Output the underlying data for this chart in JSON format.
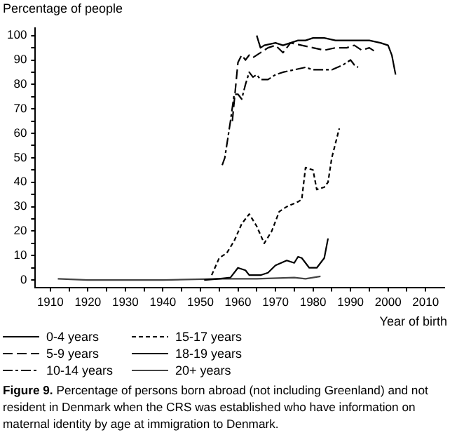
{
  "chart_data": {
    "type": "line",
    "ylabel": "Percentage of people",
    "xlabel": "Year of birth",
    "legend": "bottom",
    "grid": false,
    "marker": "none",
    "xlim": [
      1906,
      2015
    ],
    "ylim": [
      -3,
      103
    ],
    "xticks": [
      1910,
      {
        "value": 1915,
        "label": null
      },
      1920,
      {
        "value": 1925,
        "label": null
      },
      1930,
      {
        "value": 1935,
        "label": null
      },
      1940,
      {
        "value": 1945,
        "label": null
      },
      1950,
      {
        "value": 1955,
        "label": null
      },
      1960,
      {
        "value": 1965,
        "label": null
      },
      1970,
      {
        "value": 1975,
        "label": null
      },
      1980,
      {
        "value": 1985,
        "label": null
      },
      1990,
      {
        "value": 1995,
        "label": null
      },
      2000,
      {
        "value": 2005,
        "label": null
      },
      2010
    ],
    "yticks": [
      0,
      {
        "value": 5,
        "label": null
      },
      10,
      {
        "value": 15,
        "label": null
      },
      20,
      {
        "value": 25,
        "label": null
      },
      30,
      {
        "value": 35,
        "label": null
      },
      40,
      {
        "value": 45,
        "label": null
      },
      50,
      {
        "value": 55,
        "label": null
      },
      60,
      {
        "value": 65,
        "label": null
      },
      70,
      {
        "value": 75,
        "label": null
      },
      80,
      {
        "value": 85,
        "label": null
      },
      90,
      {
        "value": 95,
        "label": null
      },
      100
    ],
    "series": [
      {
        "name": "0-4 years",
        "color": "#000000",
        "line_style": "solid",
        "x": [
          1965,
          1966,
          1967,
          1970,
          1972,
          1974,
          1976,
          1978,
          1980,
          1983,
          1986,
          1990,
          1995,
          1998,
          2000,
          2001,
          2002
        ],
        "values": [
          100,
          95,
          96,
          97,
          96,
          97,
          98,
          98,
          99,
          99,
          98,
          98,
          98,
          97,
          96,
          92,
          84
        ]
      },
      {
        "name": "5-9 years",
        "color": "#000000",
        "line_style": "dashed",
        "x": [
          1958.5,
          1960,
          1961,
          1962,
          1963,
          1964,
          1966,
          1968,
          1970,
          1972,
          1974,
          1977,
          1980,
          1983,
          1986,
          1989,
          1991,
          1993,
          1995,
          1997
        ],
        "values": [
          65,
          89,
          92,
          90,
          92,
          91,
          93,
          95,
          96,
          93,
          97,
          96,
          95,
          94,
          95,
          95,
          96,
          94,
          95,
          93
        ]
      },
      {
        "name": "10-14 years",
        "color": "#000000",
        "line_style": "dashdot",
        "x": [
          1955.8,
          1956.5,
          1958,
          1959,
          1960,
          1961,
          1962,
          1963,
          1964,
          1965,
          1966,
          1968,
          1970,
          1972,
          1975,
          1978,
          1980,
          1985,
          1988,
          1990,
          1991,
          1992
        ],
        "values": [
          47,
          50,
          65,
          76,
          76,
          74,
          80,
          85,
          83,
          84,
          82,
          82,
          84,
          85,
          86,
          87,
          86,
          86,
          88,
          90,
          88,
          87
        ]
      },
      {
        "name": "15-17 years",
        "color": "#000000",
        "line_style": "dotted",
        "x": [
          1953,
          1955,
          1957,
          1959,
          1961,
          1963,
          1965,
          1967,
          1969,
          1971,
          1973,
          1976,
          1977,
          1978,
          1980,
          1981,
          1983,
          1984,
          1985,
          1987
        ],
        "values": [
          2,
          9,
          11,
          16,
          23,
          27,
          22,
          15,
          20,
          28,
          30,
          32,
          33,
          46,
          45,
          37,
          38,
          40,
          50,
          62
        ]
      },
      {
        "name": "18-19 years",
        "color": "#000000",
        "line_style": "solid",
        "x": [
          1951,
          1955,
          1958,
          1960,
          1962,
          1963,
          1966,
          1968,
          1970,
          1973,
          1975,
          1976,
          1977,
          1979,
          1981,
          1983,
          1984
        ],
        "values": [
          0,
          0.5,
          1,
          5,
          4,
          2,
          2,
          3,
          6,
          8,
          7,
          9.5,
          9,
          5,
          5,
          9,
          17
        ]
      },
      {
        "name": "20+ years",
        "color": "#444444",
        "line_style": "solid",
        "x": [
          1912,
          1920,
          1940,
          1955,
          1965,
          1975,
          1978,
          1982
        ],
        "values": [
          0.5,
          0,
          0,
          0.5,
          0.5,
          1,
          0.5,
          1.5
        ]
      }
    ],
    "annotations": [
      "Figure 9. Percentage of persons born abroad (not including Greenland) and not resident in Denmark when the CRS was established who have information on maternal identity by age at immigration to Denmark."
    ]
  }
}
